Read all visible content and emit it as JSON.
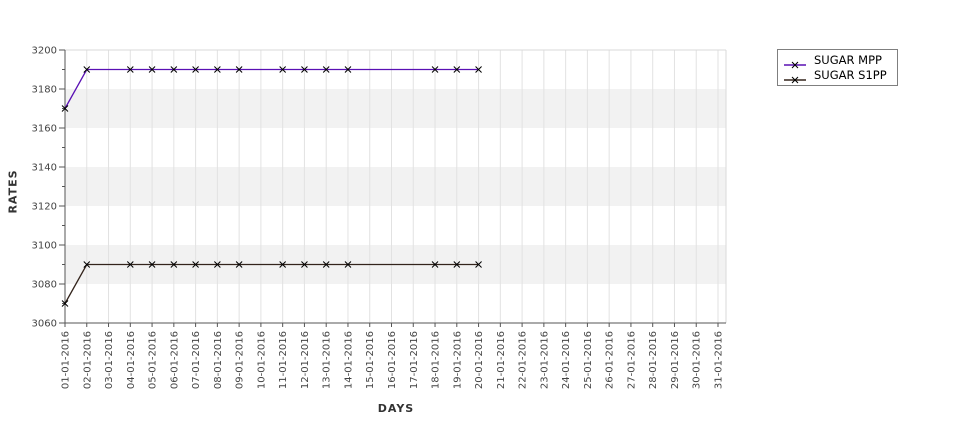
{
  "chart_data": {
    "type": "line",
    "title": "",
    "xlabel": "DAYS",
    "ylabel": "RATES",
    "x_tick_labels": [
      "01-01-2016",
      "02-01-2016",
      "03-01-2016",
      "04-01-2016",
      "05-01-2016",
      "06-01-2016",
      "07-01-2016",
      "08-01-2016",
      "09-01-2016",
      "10-01-2016",
      "11-01-2016",
      "12-01-2016",
      "13-01-2016",
      "14-01-2016",
      "15-01-2016",
      "16-01-2016",
      "17-01-2016",
      "18-01-2016",
      "19-01-2016",
      "20-01-2016",
      "21-01-2016",
      "22-01-2016",
      "23-01-2016",
      "24-01-2016",
      "25-01-2016",
      "26-01-2016",
      "27-01-2016",
      "28-01-2016",
      "29-01-2016",
      "30-01-2016",
      "31-01-2016"
    ],
    "ylim": [
      3060,
      3200
    ],
    "y_major_ticks": [
      3060,
      3080,
      3100,
      3120,
      3140,
      3160,
      3180,
      3200
    ],
    "y_minor_tick_step": 10,
    "grid": "vertical gridline at every day, horizontal shaded bands",
    "plot_bands": {
      "fill": "#f2f2f2",
      "value_ranges": [
        [
          3080,
          3100
        ],
        [
          3120,
          3140
        ],
        [
          3160,
          3180
        ]
      ]
    },
    "legend_position": "outside-top-right",
    "series": [
      {
        "name": "SUGAR MPP",
        "color": "#5a10b4",
        "marker": "x",
        "marker_color": "#000000",
        "x_days": [
          1,
          2,
          4,
          5,
          6,
          7,
          8,
          9,
          11,
          12,
          13,
          14,
          18,
          19,
          20
        ],
        "values": [
          3170,
          3190,
          3190,
          3190,
          3190,
          3190,
          3190,
          3190,
          3190,
          3190,
          3190,
          3190,
          3190,
          3190,
          3190
        ]
      },
      {
        "name": "SUGAR S1PP",
        "color": "#33241c",
        "marker": "x",
        "marker_color": "#000000",
        "x_days": [
          1,
          2,
          4,
          5,
          6,
          7,
          8,
          9,
          11,
          12,
          13,
          14,
          18,
          19,
          20
        ],
        "values": [
          3070,
          3090,
          3090,
          3090,
          3090,
          3090,
          3090,
          3090,
          3090,
          3090,
          3090,
          3090,
          3090,
          3090,
          3090
        ]
      }
    ],
    "style": {
      "axis_color": "#555555",
      "border_color": "#d9d9d9",
      "gridline_color": "#e2e2e2",
      "tick_label_color": "#444444",
      "axis_title_color": "#333333",
      "band_fill": "#f2f2f2",
      "background": "#ffffff"
    }
  }
}
